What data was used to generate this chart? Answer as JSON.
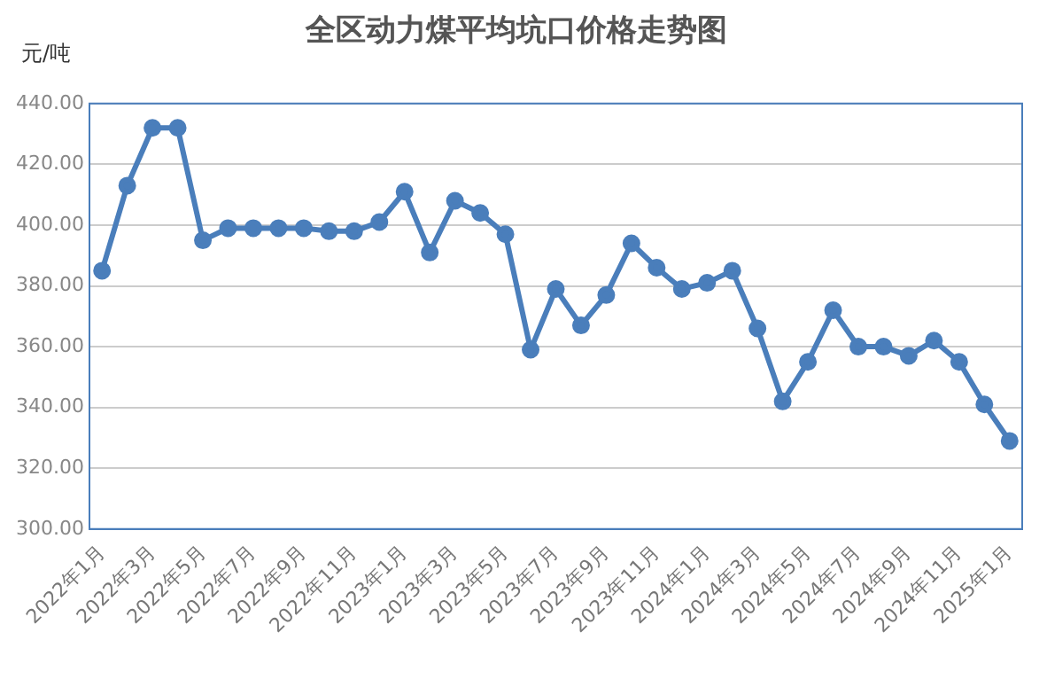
{
  "chart_data": {
    "type": "line",
    "title": "全区动力煤平均坑口价格走势图",
    "ylabel": "元/吨",
    "categories": [
      "2022年1月",
      null,
      "2022年3月",
      null,
      "2022年5月",
      null,
      "2022年7月",
      null,
      "2022年9月",
      null,
      "2022年11月",
      null,
      "2023年1月",
      null,
      "2023年3月",
      null,
      "2023年5月",
      null,
      "2023年7月",
      null,
      "2023年9月",
      null,
      "2023年11月",
      null,
      "2024年1月",
      null,
      "2024年3月",
      null,
      "2024年5月",
      null,
      "2024年7月",
      null,
      "2024年9月",
      null,
      "2024年11月",
      null,
      "2025年1月"
    ],
    "series": [
      {
        "color": "#4a7ebb",
        "values": [
          385,
          413,
          432,
          432,
          395,
          399,
          399,
          399,
          399,
          398,
          398,
          401,
          411,
          391,
          408,
          404,
          397,
          359,
          379,
          367,
          377,
          394,
          386,
          379,
          381,
          385,
          366,
          342,
          355,
          372,
          360,
          360,
          357,
          362,
          355,
          341,
          329
        ]
      }
    ],
    "ylim": [
      300,
      440
    ],
    "yticks": [
      {
        "value": 300,
        "label": "300.00"
      },
      {
        "value": 320,
        "label": "320.00"
      },
      {
        "value": 340,
        "label": "340.00"
      },
      {
        "value": 360,
        "label": "360.00"
      },
      {
        "value": 380,
        "label": "380.00"
      },
      {
        "value": 400,
        "label": "400.00"
      },
      {
        "value": 420,
        "label": "420.00"
      },
      {
        "value": 440,
        "label": "440.00"
      }
    ],
    "grid": "y",
    "marker": "circle",
    "line_style": "solid",
    "legend": false
  }
}
